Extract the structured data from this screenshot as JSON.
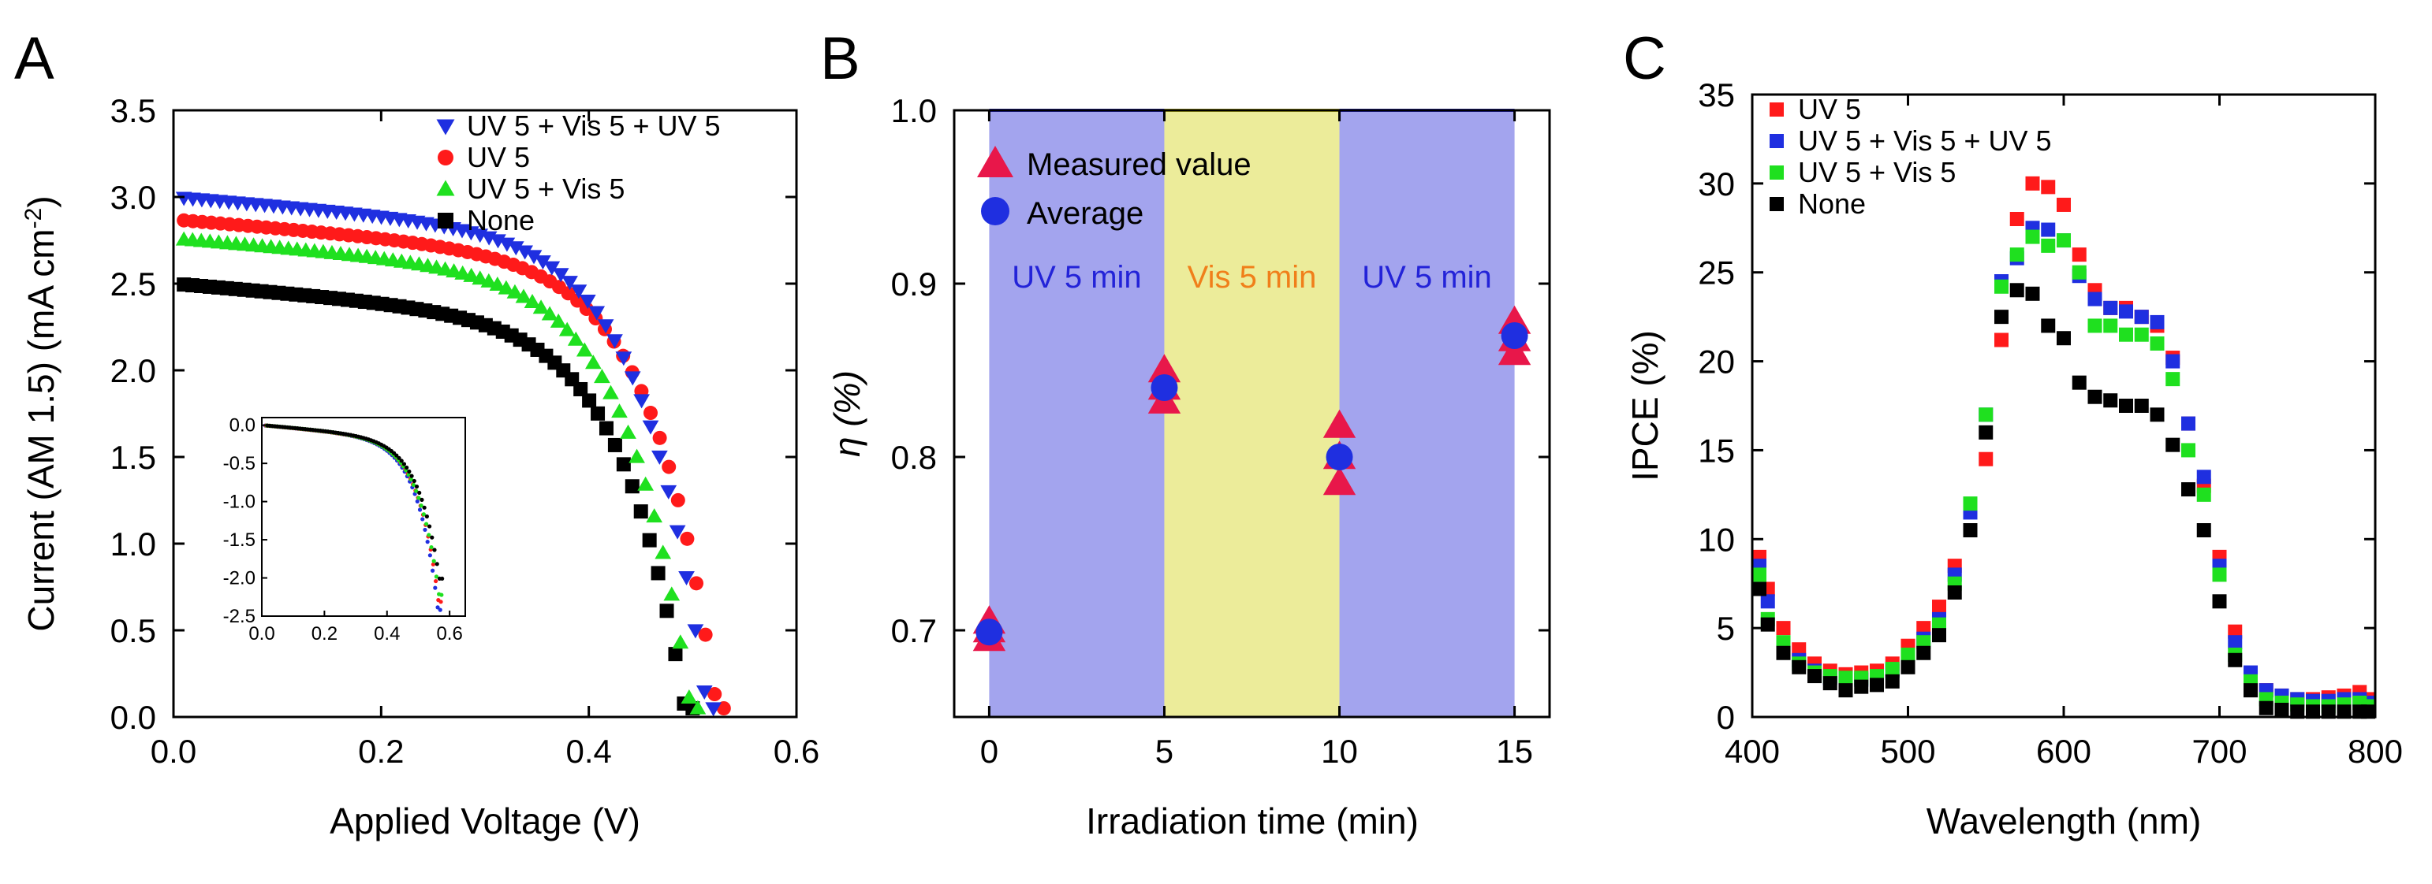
{
  "colors": {
    "uv_vis_uv": "#1f2fe0",
    "uv5": "#ff1a1a",
    "uv_vis": "#1fe01f",
    "none": "#000000",
    "uv_band": "#a3a4ee",
    "vis_band": "#ecec9a",
    "measured": "#e8174a",
    "average": "#1f2fe0",
    "band_text_uv": "#2323d8",
    "band_text_vis": "#f07f1a"
  },
  "chart_data": [
    {
      "panel": "A",
      "type": "scatter",
      "xlabel": "Applied Voltage (V)",
      "ylabel_main": "Current (AM 1.5) (mA cm",
      "ylabel_sup": "-2",
      "ylabel_end": ")",
      "xlim": [
        0,
        0.6
      ],
      "ylim": [
        0,
        3.5
      ],
      "xticks": [
        "0.0",
        "0.2",
        "0.4",
        "0.6"
      ],
      "yticks": [
        "0.0",
        "0.5",
        "1.0",
        "1.5",
        "2.0",
        "2.5",
        "3.0",
        "3.5"
      ],
      "legend_placement": "top-right",
      "series": [
        {
          "name": "UV 5 + Vis 5 + UV 5",
          "marker": "triangle-down",
          "color_key": "uv_vis_uv",
          "jsc": 3.0,
          "voc": 0.52,
          "n": 60
        },
        {
          "name": "UV 5",
          "marker": "circle",
          "color_key": "uv5",
          "jsc": 2.87,
          "voc": 0.53,
          "n": 60
        },
        {
          "name": "UV 5 + Vis 5",
          "marker": "triangle-up",
          "color_key": "uv_vis",
          "jsc": 2.76,
          "voc": 0.505,
          "n": 60
        },
        {
          "name": "None",
          "marker": "square",
          "color_key": "none",
          "jsc": 2.5,
          "voc": 0.5,
          "n": 60
        }
      ],
      "inset": {
        "xlim": [
          0,
          0.65
        ],
        "ylim": [
          -2.5,
          0.1
        ],
        "xticks": [
          "0.0",
          "0.2",
          "0.4",
          "0.6"
        ],
        "yticks": [
          "0.0",
          "-0.5",
          "-1.0",
          "-1.5",
          "-2.0",
          "-2.5"
        ]
      }
    },
    {
      "panel": "B",
      "type": "scatter",
      "xlabel": "Irradiation time (min)",
      "ylabel": "η (%)",
      "xlim": [
        -1,
        16
      ],
      "ylim": [
        0.65,
        1.0
      ],
      "xticks": [
        "0",
        "5",
        "10",
        "15"
      ],
      "yticks": [
        "0.7",
        "0.8",
        "0.9",
        "1.0"
      ],
      "bands": [
        {
          "label": "UV 5 min",
          "from": 0,
          "to": 5,
          "kind": "uv"
        },
        {
          "label": "Vis 5 min",
          "from": 5,
          "to": 10,
          "kind": "vis"
        },
        {
          "label": "UV 5 min",
          "from": 10,
          "to": 15,
          "kind": "uv"
        }
      ],
      "legend": [
        {
          "name": "Measured value",
          "marker": "triangle-up"
        },
        {
          "name": "Average",
          "marker": "circle"
        }
      ],
      "measured": [
        {
          "x": 0,
          "y": [
            0.695,
            0.7,
            0.705
          ]
        },
        {
          "x": 5,
          "y": [
            0.832,
            0.84,
            0.85
          ]
        },
        {
          "x": 10,
          "y": [
            0.785,
            0.8,
            0.818
          ]
        },
        {
          "x": 15,
          "y": [
            0.86,
            0.868,
            0.878
          ]
        }
      ],
      "average": [
        {
          "x": 0,
          "y": 0.699
        },
        {
          "x": 5,
          "y": 0.84
        },
        {
          "x": 10,
          "y": 0.8
        },
        {
          "x": 15,
          "y": 0.87
        }
      ]
    },
    {
      "panel": "C",
      "type": "scatter",
      "xlabel": "Wavelength (nm)",
      "ylabel": "IPCE (%)",
      "xlim": [
        400,
        800
      ],
      "ylim": [
        0,
        35
      ],
      "xticks": [
        "400",
        "500",
        "600",
        "700",
        "800"
      ],
      "yticks": [
        "0",
        "5",
        "10",
        "15",
        "20",
        "25",
        "30",
        "35"
      ],
      "legend_placement": "top-left",
      "x": [
        400,
        410,
        420,
        430,
        440,
        450,
        460,
        470,
        480,
        490,
        500,
        510,
        520,
        530,
        540,
        550,
        560,
        570,
        580,
        590,
        600,
        610,
        620,
        630,
        640,
        650,
        660,
        670,
        680,
        690,
        700,
        710,
        720,
        730,
        740,
        750,
        760,
        770,
        780,
        790,
        800
      ],
      "series": [
        {
          "name": "UV 5",
          "color_key": "uv5",
          "values": [
            9.0,
            7.2,
            5.0,
            3.8,
            3.0,
            2.6,
            2.4,
            2.5,
            2.6,
            3.0,
            4.0,
            5.0,
            6.2,
            8.5,
            11.8,
            14.5,
            21.2,
            28.0,
            30.0,
            29.8,
            28.8,
            26.0,
            24.0,
            23.0,
            23.0,
            22.5,
            22.0,
            20.2,
            16.5,
            13.0,
            9.0,
            4.8,
            2.0,
            1.5,
            1.2,
            1.0,
            1.0,
            1.1,
            1.2,
            1.4,
            1.0
          ]
        },
        {
          "name": "UV 5 + Vis 5 + UV 5",
          "color_key": "uv_vis_uv",
          "values": [
            8.5,
            6.5,
            4.0,
            3.2,
            2.6,
            2.2,
            2.0,
            2.1,
            2.2,
            2.6,
            3.4,
            4.4,
            5.5,
            8.0,
            11.5,
            17.0,
            24.5,
            25.8,
            27.5,
            27.4,
            26.8,
            24.8,
            23.5,
            23.0,
            22.8,
            22.5,
            22.2,
            20.0,
            16.5,
            13.5,
            8.5,
            4.2,
            2.5,
            1.5,
            1.2,
            1.0,
            0.9,
            0.9,
            1.0,
            1.0,
            0.8
          ]
        },
        {
          "name": "UV 5 + Vis 5",
          "color_key": "uv_vis",
          "values": [
            8.0,
            5.5,
            4.2,
            3.0,
            2.5,
            2.3,
            2.2,
            2.2,
            2.3,
            2.7,
            3.5,
            4.2,
            5.2,
            7.5,
            12.0,
            17.0,
            24.2,
            26.0,
            27.0,
            26.5,
            26.8,
            25.0,
            22.0,
            22.0,
            21.5,
            21.5,
            21.0,
            19.0,
            15.0,
            12.5,
            8.0,
            3.5,
            2.0,
            1.0,
            0.8,
            0.7,
            0.6,
            0.6,
            0.7,
            0.8,
            0.6
          ]
        },
        {
          "name": "None",
          "color_key": "none",
          "values": [
            7.2,
            5.2,
            3.6,
            2.8,
            2.3,
            1.9,
            1.5,
            1.7,
            1.8,
            2.0,
            2.8,
            3.6,
            4.6,
            7.0,
            10.5,
            16.0,
            22.5,
            24.0,
            23.8,
            22.0,
            21.3,
            18.8,
            18.0,
            17.8,
            17.5,
            17.5,
            17.0,
            15.3,
            12.8,
            10.5,
            6.5,
            3.2,
            1.5,
            0.5,
            0.4,
            0.3,
            0.3,
            0.3,
            0.3,
            0.3,
            0.3
          ]
        }
      ]
    }
  ]
}
